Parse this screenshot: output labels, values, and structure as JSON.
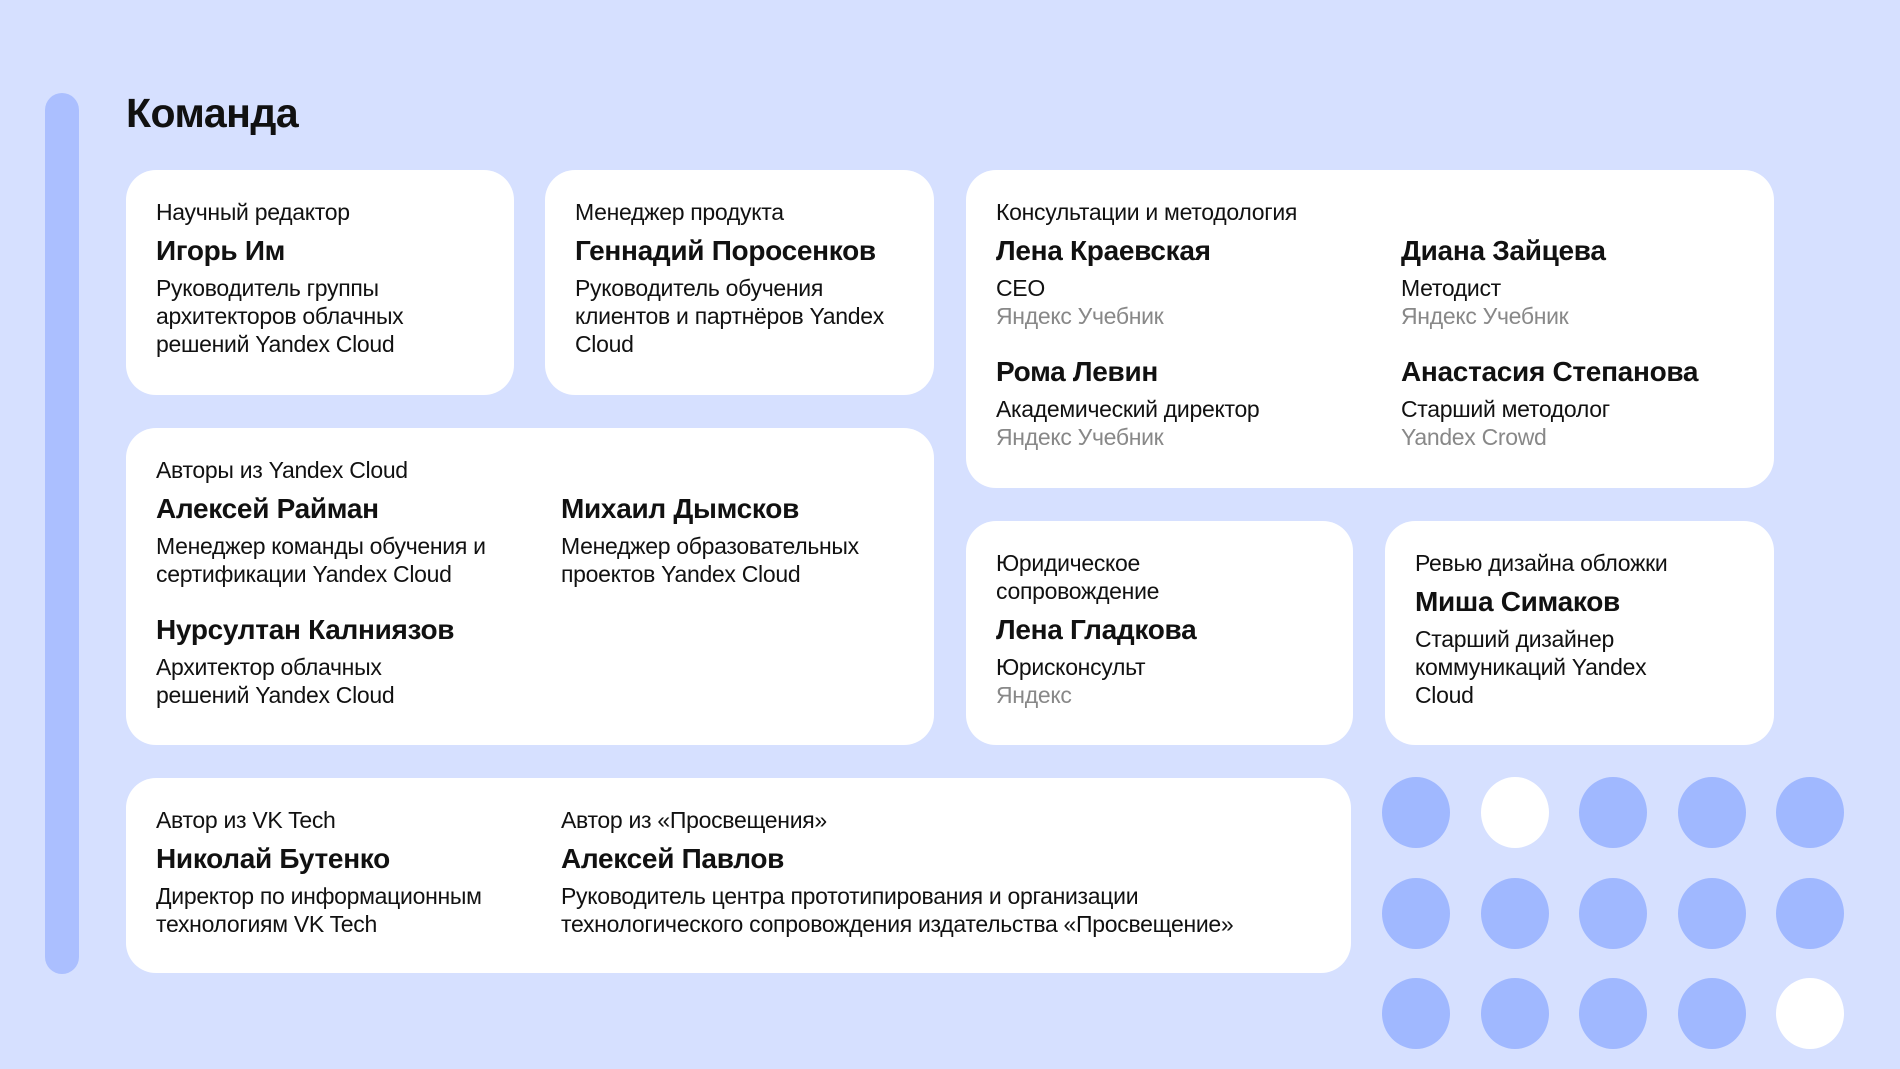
{
  "title": "Команда",
  "colors": {
    "background": "#d6e0ff",
    "accent_bar": "#abbfff",
    "dot": "#a0b8ff",
    "card": "#ffffff",
    "muted": "#888888"
  },
  "cards": [
    {
      "label": "Научный редактор",
      "persons": [
        {
          "name": "Игорь Им",
          "role": "Руководитель группы архитекторов облачных решений Yandex Cloud"
        }
      ]
    },
    {
      "label": "Менеджер продукта",
      "persons": [
        {
          "name": "Геннадий Поросенков",
          "role": "Руководитель обучения клиентов и партнёров Yandex Cloud"
        }
      ]
    },
    {
      "label": "Консультации и методология",
      "persons": [
        {
          "name": "Лена Краевская",
          "role": "CEO",
          "company": "Яндекс Учебник"
        },
        {
          "name": "Диана Зайцева",
          "role": "Методист",
          "company": "Яндекс Учебник"
        },
        {
          "name": "Рома Левин",
          "role": "Академический директор",
          "company": "Яндекс Учебник"
        },
        {
          "name": "Анастасия Степанова",
          "role": "Старший методолог",
          "company": "Yandex Crowd"
        }
      ]
    },
    {
      "label": "Авторы из Yandex Cloud",
      "persons": [
        {
          "name": "Алексей Райман",
          "role": "Менеджер команды обучения и сертификации Yandex Cloud"
        },
        {
          "name": "Михаил Дымсков",
          "role": "Менеджер образовательных проектов Yandex Cloud"
        },
        {
          "name": "Нурсултан Калниязов",
          "role": "Архитектор облачных решений Yandex Cloud"
        }
      ]
    },
    {
      "label": "Юридическое сопровождение",
      "persons": [
        {
          "name": "Лена Гладкова",
          "role": "Юрисконсульт",
          "company": "Яндекс"
        }
      ]
    },
    {
      "label": "Ревью дизайна обложки",
      "persons": [
        {
          "name": "Миша Симаков",
          "role": "Старший дизайнер коммуникаций Yandex Cloud"
        }
      ]
    },
    {
      "label": "Автор из VK Tech",
      "persons": [
        {
          "name": "Николай Бутенко",
          "role": "Директор по информационным технологиям VK Tech"
        }
      ]
    },
    {
      "label": "Автор из «Просвещения»",
      "persons": [
        {
          "name": "Алексей Павлов",
          "role": "Руководитель центра прототипирования и организации технологического сопровождения издательства «Просвещение»"
        }
      ]
    }
  ],
  "dots": [
    [
      "blue",
      "white",
      "blue",
      "blue",
      "blue"
    ],
    [
      "blue",
      "blue",
      "blue",
      "blue",
      "blue"
    ],
    [
      "blue",
      "blue",
      "blue",
      "blue",
      "white"
    ]
  ]
}
